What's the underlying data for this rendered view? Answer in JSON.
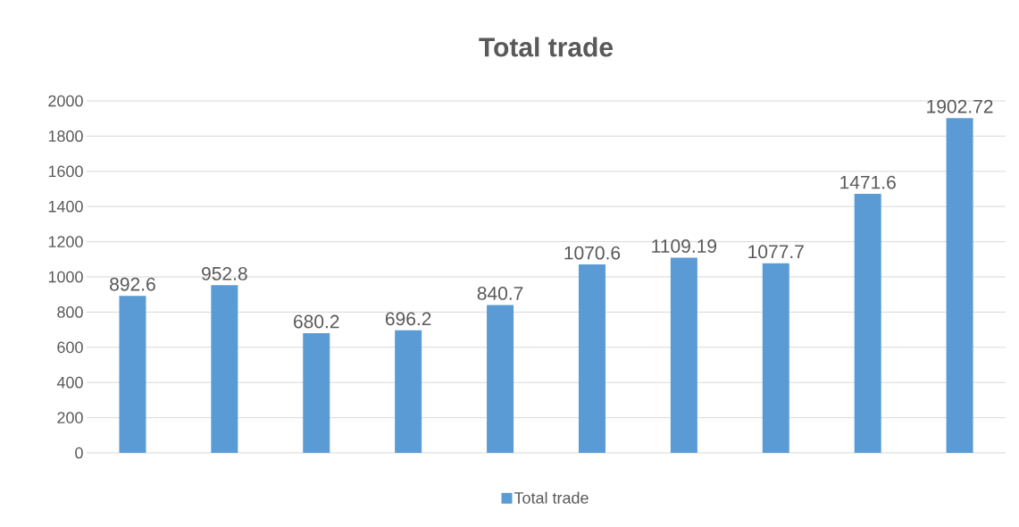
{
  "chart_data": {
    "type": "bar",
    "title": "Total trade",
    "categories": [
      null,
      null,
      null,
      null,
      null,
      null,
      null,
      null,
      null,
      null
    ],
    "series": [
      {
        "name": "Total trade",
        "color": "#5b9bd5",
        "values": [
          892.6,
          952.8,
          680.2,
          696.2,
          840.7,
          1070.6,
          1109.19,
          1077.7,
          1471.6,
          1902.72
        ]
      }
    ],
    "ylim": [
      0,
      2000
    ],
    "yticks": [
      0,
      200,
      400,
      600,
      800,
      1000,
      1200,
      1400,
      1600,
      1800,
      2000
    ],
    "grid": "y",
    "legend": "bottom",
    "data_labels": true
  }
}
